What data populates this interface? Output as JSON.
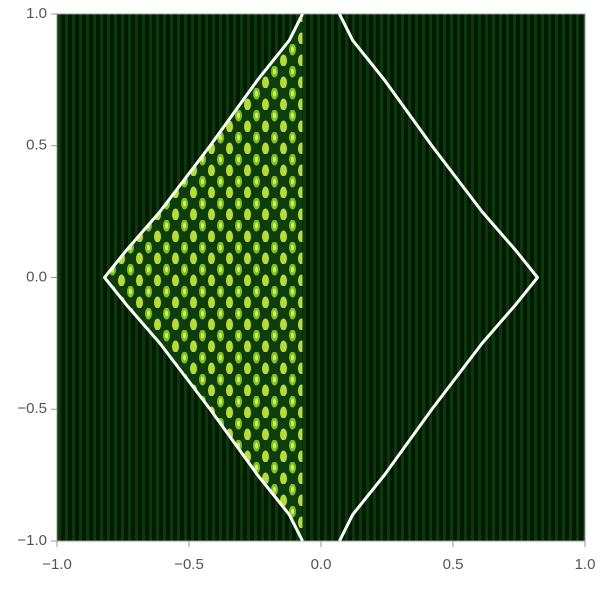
{
  "chart_data": {
    "type": "line",
    "xlim": [
      -1,
      1
    ],
    "ylim": [
      -1,
      1
    ],
    "xticks": [
      {
        "value": -1,
        "label": "−1.0"
      },
      {
        "value": -0.5,
        "label": "−0.5"
      },
      {
        "value": 0,
        "label": "0.0"
      },
      {
        "value": 0.5,
        "label": "0.5"
      },
      {
        "value": 1,
        "label": "1.0"
      }
    ],
    "yticks": [
      {
        "value": -1,
        "label": "−1.0"
      },
      {
        "value": -0.5,
        "label": "−0.5"
      },
      {
        "value": 0,
        "label": "0.0"
      },
      {
        "value": 0.5,
        "label": "0.5"
      },
      {
        "value": 1,
        "label": "1.0"
      }
    ],
    "grid": false,
    "series": [
      {
        "color": "#ffffff",
        "x": [
          -0.07,
          -0.12,
          -0.24,
          -0.42,
          -0.61,
          -0.74,
          -0.82,
          -0.74,
          -0.61,
          -0.42,
          -0.24,
          -0.12,
          -0.07,
          null,
          0.07,
          0.12,
          0.24,
          0.42,
          0.61,
          0.74,
          0.82,
          0.74,
          0.61,
          0.42,
          0.24,
          0.12,
          0.07
        ],
        "values": [
          1,
          0.9,
          0.75,
          0.5,
          0.25,
          0.1,
          0,
          -0.1,
          -0.25,
          -0.5,
          -0.75,
          -0.9,
          -1,
          null,
          1,
          0.9,
          0.75,
          0.5,
          0.25,
          0.1,
          0,
          -0.1,
          -0.25,
          -0.5,
          -0.75,
          -0.9,
          -1
        ]
      }
    ]
  }
}
